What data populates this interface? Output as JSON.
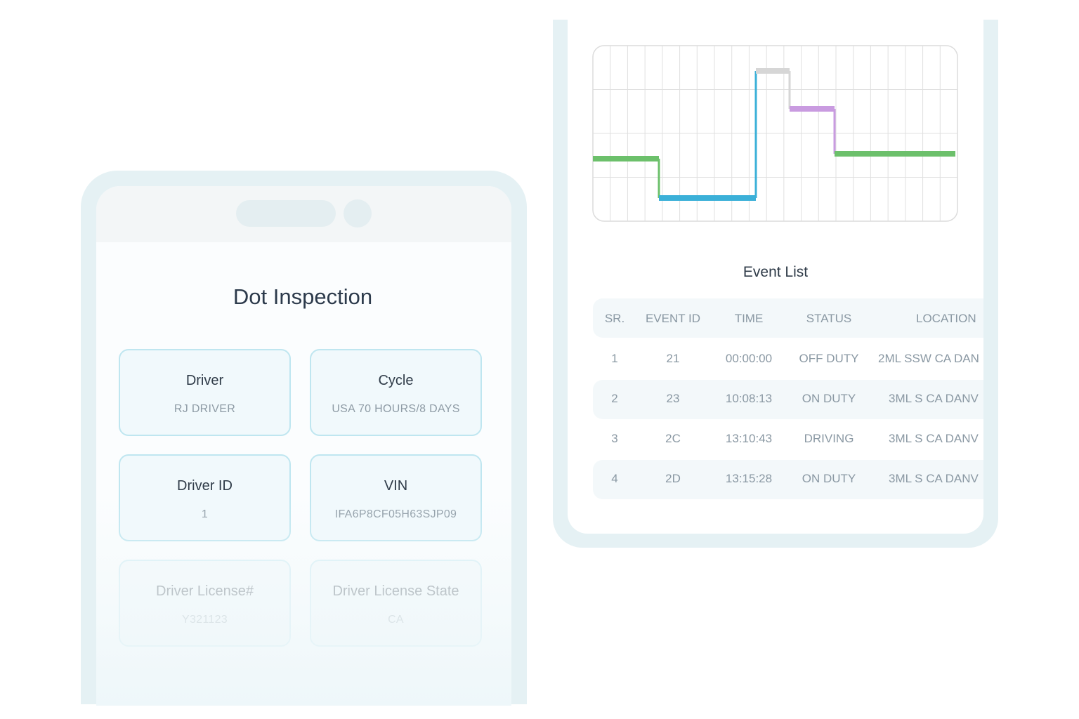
{
  "dot_inspection": {
    "title": "Dot Inspection",
    "cards": [
      {
        "label": "Driver",
        "value": "RJ DRIVER"
      },
      {
        "label": "Cycle",
        "value": "USA 70 HOURS/8 DAYS"
      },
      {
        "label": "Driver ID",
        "value": "1"
      },
      {
        "label": "VIN",
        "value": "IFA6P8CF05H63SJP09"
      },
      {
        "label": "Driver License#",
        "value": "Y321123"
      },
      {
        "label": "Driver License State",
        "value": "CA"
      }
    ]
  },
  "event_list": {
    "title": "Event List",
    "columns": [
      "SR.",
      "EVENT ID",
      "TIME",
      "STATUS",
      "LOCATION"
    ],
    "rows": [
      [
        "1",
        "21",
        "00:00:00",
        "OFF DUTY",
        "2ML SSW CA DAN"
      ],
      [
        "2",
        "23",
        "10:08:13",
        "ON DUTY",
        "3ML S CA DANV"
      ],
      [
        "3",
        "2C",
        "13:10:43",
        "DRIVING",
        "3ML S CA DANV"
      ],
      [
        "4",
        "2D",
        "13:15:28",
        "ON DUTY",
        "3ML S CA DANV"
      ]
    ]
  }
}
